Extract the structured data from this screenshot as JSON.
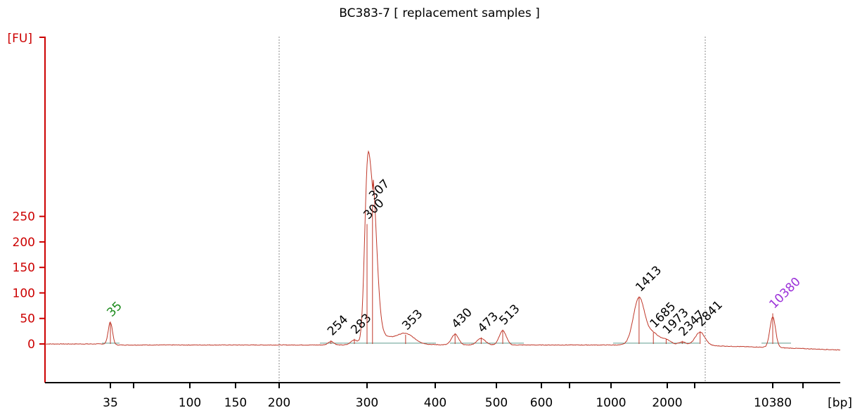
{
  "chart_data": {
    "type": "line",
    "title": "BC383-7  [ replacement samples ]",
    "ylabel": "[FU]",
    "xlabel": "[bp]",
    "ylim": [
      -35,
      290
    ],
    "y_ticks": [
      0,
      50,
      100,
      150,
      200,
      250
    ],
    "x_tick_labels": [
      "35",
      "100",
      "150",
      "200",
      "300",
      "400",
      "500",
      "600",
      "1000",
      "2000",
      "10380"
    ],
    "x_scale": "electrophoresis ladder (non-linear bp)",
    "grid": false,
    "series": [
      {
        "color": "#c0392b",
        "peaks": [
          {
            "bp": 35,
            "fu": 44,
            "label": "35",
            "label_color": "#1a8a1a"
          },
          {
            "bp": 254,
            "fu": 7,
            "label": "254"
          },
          {
            "bp": 283,
            "fu": 10,
            "label": "283"
          },
          {
            "bp": 300,
            "fu": 235,
            "label": "300"
          },
          {
            "bp": 307,
            "fu": 273,
            "label": "307"
          },
          {
            "bp": 353,
            "fu": 18,
            "label": "353"
          },
          {
            "bp": 430,
            "fu": 21,
            "label": "430"
          },
          {
            "bp": 473,
            "fu": 13,
            "label": "473"
          },
          {
            "bp": 513,
            "fu": 28,
            "label": "513"
          },
          {
            "bp": 1413,
            "fu": 93,
            "label": "1413"
          },
          {
            "bp": 1685,
            "fu": 22,
            "label": "1685"
          },
          {
            "bp": 1973,
            "fu": 10,
            "label": "1973"
          },
          {
            "bp": 2347,
            "fu": 6,
            "label": "2347"
          },
          {
            "bp": 2841,
            "fu": 25,
            "label": "2841"
          },
          {
            "bp": 10380,
            "fu": 60,
            "label": "10380",
            "label_color": "#9b30d9"
          }
        ]
      }
    ],
    "annotations": [
      "dashed gray vertical markers at 200 bp and between 2841 bp and 10380 bp"
    ]
  }
}
